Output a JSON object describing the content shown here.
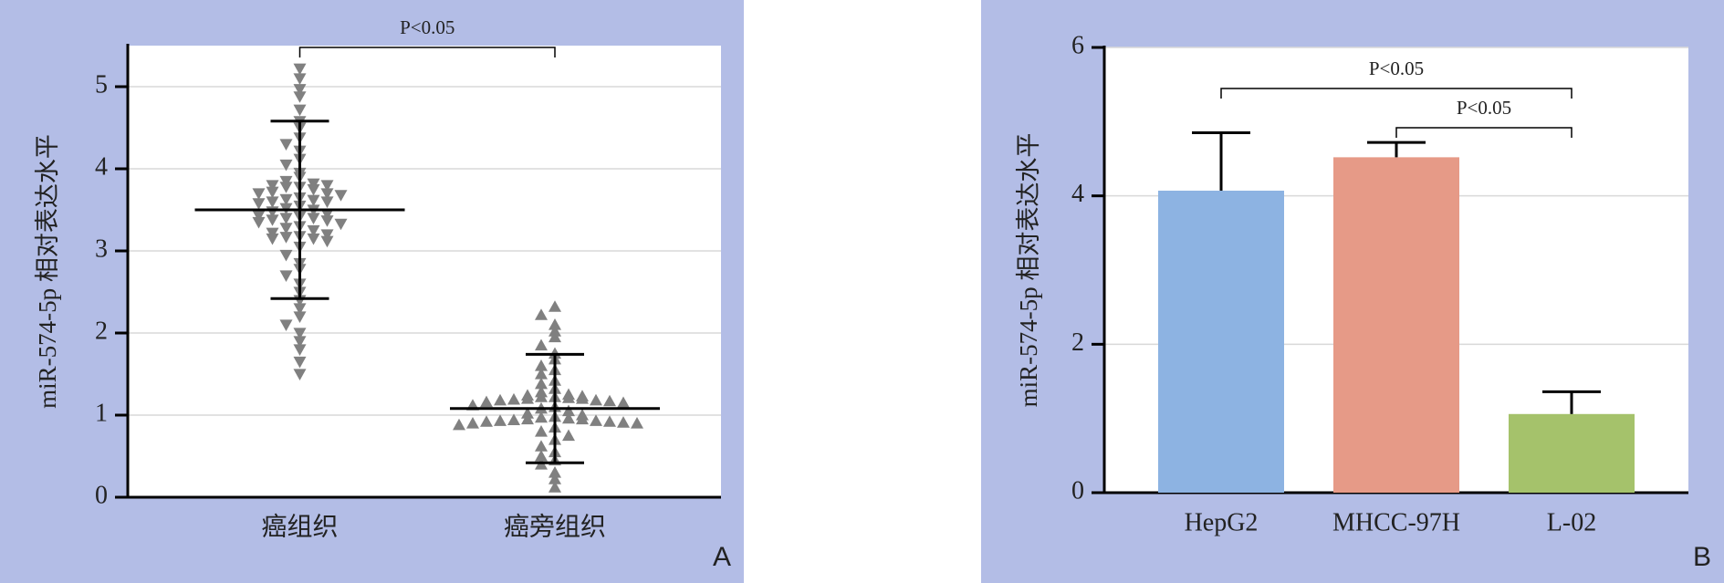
{
  "chart_data": [
    {
      "type": "strip",
      "panel_label": "A",
      "y_label": "miR-574-5p 相对表达水平",
      "categories": [
        "癌组织",
        "癌旁组织"
      ],
      "values": [
        [
          5.22,
          5.1,
          4.97,
          4.88,
          4.72,
          4.58,
          4.5,
          4.38,
          4.3,
          4.22,
          4.12,
          4.05,
          3.95,
          3.9,
          3.85,
          3.82,
          3.8,
          3.8,
          3.78,
          3.78,
          3.75,
          3.72,
          3.7,
          3.7,
          3.68,
          3.65,
          3.63,
          3.62,
          3.6,
          3.6,
          3.58,
          3.55,
          3.52,
          3.5,
          3.48,
          3.45,
          3.43,
          3.42,
          3.4,
          3.4,
          3.38,
          3.37,
          3.35,
          3.33,
          3.3,
          3.28,
          3.25,
          3.22,
          3.2,
          3.18,
          3.17,
          3.15,
          3.15,
          3.12,
          3.05,
          2.95,
          2.85,
          2.78,
          2.7,
          2.6,
          2.5,
          2.4,
          2.3,
          2.2,
          2.1,
          2.0,
          1.9,
          1.8,
          1.65,
          1.5
        ],
        [
          2.32,
          2.22,
          2.1,
          2.02,
          1.95,
          1.85,
          1.75,
          1.68,
          1.6,
          1.55,
          1.5,
          1.42,
          1.38,
          1.32,
          1.28,
          1.25,
          1.24,
          1.23,
          1.22,
          1.22,
          1.21,
          1.2,
          1.2,
          1.19,
          1.18,
          1.18,
          1.17,
          1.16,
          1.15,
          1.12,
          1.1,
          1.08,
          1.05,
          1.02,
          1.0,
          0.98,
          0.97,
          0.96,
          0.95,
          0.95,
          0.94,
          0.93,
          0.93,
          0.92,
          0.92,
          0.91,
          0.9,
          0.9,
          0.88,
          0.85,
          0.8,
          0.75,
          0.7,
          0.62,
          0.55,
          0.5,
          0.45,
          0.4,
          0.3,
          0.22,
          0.12
        ]
      ],
      "markers": [
        "down",
        "up"
      ],
      "mean": [
        3.5,
        1.08
      ],
      "sd": [
        1.08,
        0.66
      ],
      "color": "#808080",
      "ylim": [
        0,
        5.5
      ],
      "yticks": [
        0,
        1,
        2,
        3,
        4,
        5
      ],
      "grid": true,
      "comparisons": [
        {
          "label": "P<0.05",
          "between": [
            0,
            1
          ]
        }
      ]
    },
    {
      "type": "bar",
      "panel_label": "B",
      "y_label": "miR-574-5p 相对表达水平",
      "categories": [
        "HepG2",
        "MHCC-97H",
        "L-02"
      ],
      "values": [
        4.07,
        4.52,
        1.06
      ],
      "errors": [
        0.78,
        0.2,
        0.3
      ],
      "colors": [
        "#8db3e2",
        "#e69a87",
        "#a5c26b"
      ],
      "ylim": [
        0,
        6
      ],
      "yticks": [
        0,
        2,
        4,
        6
      ],
      "grid": true,
      "comparisons": [
        {
          "label": "P<0.05",
          "between": [
            0,
            2
          ]
        },
        {
          "label": "P<0.05",
          "between": [
            1,
            2
          ]
        }
      ]
    }
  ]
}
